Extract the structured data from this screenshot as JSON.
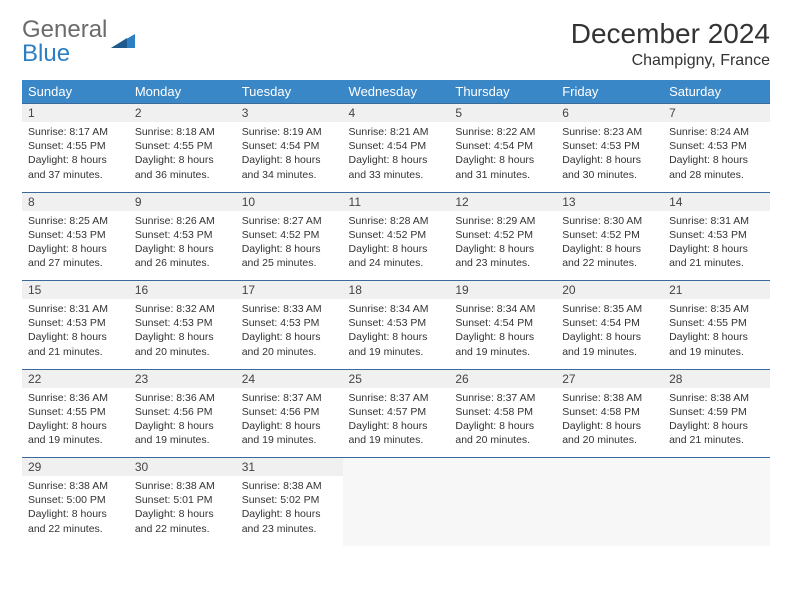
{
  "brand": {
    "general": "General",
    "blue": "Blue"
  },
  "title": "December 2024",
  "location": "Champigny, France",
  "colors": {
    "header_bg": "#3a87c8",
    "header_text": "#ffffff",
    "daynum_bg": "#f0f0f0",
    "border": "#3a6a9a",
    "logo_gray": "#6b6b6b",
    "logo_blue": "#2d7fc1"
  },
  "weekdays": [
    "Sunday",
    "Monday",
    "Tuesday",
    "Wednesday",
    "Thursday",
    "Friday",
    "Saturday"
  ],
  "weeks": [
    [
      {
        "n": "1",
        "sr": "8:17 AM",
        "ss": "4:55 PM",
        "dl": "8 hours and 37 minutes."
      },
      {
        "n": "2",
        "sr": "8:18 AM",
        "ss": "4:55 PM",
        "dl": "8 hours and 36 minutes."
      },
      {
        "n": "3",
        "sr": "8:19 AM",
        "ss": "4:54 PM",
        "dl": "8 hours and 34 minutes."
      },
      {
        "n": "4",
        "sr": "8:21 AM",
        "ss": "4:54 PM",
        "dl": "8 hours and 33 minutes."
      },
      {
        "n": "5",
        "sr": "8:22 AM",
        "ss": "4:54 PM",
        "dl": "8 hours and 31 minutes."
      },
      {
        "n": "6",
        "sr": "8:23 AM",
        "ss": "4:53 PM",
        "dl": "8 hours and 30 minutes."
      },
      {
        "n": "7",
        "sr": "8:24 AM",
        "ss": "4:53 PM",
        "dl": "8 hours and 28 minutes."
      }
    ],
    [
      {
        "n": "8",
        "sr": "8:25 AM",
        "ss": "4:53 PM",
        "dl": "8 hours and 27 minutes."
      },
      {
        "n": "9",
        "sr": "8:26 AM",
        "ss": "4:53 PM",
        "dl": "8 hours and 26 minutes."
      },
      {
        "n": "10",
        "sr": "8:27 AM",
        "ss": "4:52 PM",
        "dl": "8 hours and 25 minutes."
      },
      {
        "n": "11",
        "sr": "8:28 AM",
        "ss": "4:52 PM",
        "dl": "8 hours and 24 minutes."
      },
      {
        "n": "12",
        "sr": "8:29 AM",
        "ss": "4:52 PM",
        "dl": "8 hours and 23 minutes."
      },
      {
        "n": "13",
        "sr": "8:30 AM",
        "ss": "4:52 PM",
        "dl": "8 hours and 22 minutes."
      },
      {
        "n": "14",
        "sr": "8:31 AM",
        "ss": "4:53 PM",
        "dl": "8 hours and 21 minutes."
      }
    ],
    [
      {
        "n": "15",
        "sr": "8:31 AM",
        "ss": "4:53 PM",
        "dl": "8 hours and 21 minutes."
      },
      {
        "n": "16",
        "sr": "8:32 AM",
        "ss": "4:53 PM",
        "dl": "8 hours and 20 minutes."
      },
      {
        "n": "17",
        "sr": "8:33 AM",
        "ss": "4:53 PM",
        "dl": "8 hours and 20 minutes."
      },
      {
        "n": "18",
        "sr": "8:34 AM",
        "ss": "4:53 PM",
        "dl": "8 hours and 19 minutes."
      },
      {
        "n": "19",
        "sr": "8:34 AM",
        "ss": "4:54 PM",
        "dl": "8 hours and 19 minutes."
      },
      {
        "n": "20",
        "sr": "8:35 AM",
        "ss": "4:54 PM",
        "dl": "8 hours and 19 minutes."
      },
      {
        "n": "21",
        "sr": "8:35 AM",
        "ss": "4:55 PM",
        "dl": "8 hours and 19 minutes."
      }
    ],
    [
      {
        "n": "22",
        "sr": "8:36 AM",
        "ss": "4:55 PM",
        "dl": "8 hours and 19 minutes."
      },
      {
        "n": "23",
        "sr": "8:36 AM",
        "ss": "4:56 PM",
        "dl": "8 hours and 19 minutes."
      },
      {
        "n": "24",
        "sr": "8:37 AM",
        "ss": "4:56 PM",
        "dl": "8 hours and 19 minutes."
      },
      {
        "n": "25",
        "sr": "8:37 AM",
        "ss": "4:57 PM",
        "dl": "8 hours and 19 minutes."
      },
      {
        "n": "26",
        "sr": "8:37 AM",
        "ss": "4:58 PM",
        "dl": "8 hours and 20 minutes."
      },
      {
        "n": "27",
        "sr": "8:38 AM",
        "ss": "4:58 PM",
        "dl": "8 hours and 20 minutes."
      },
      {
        "n": "28",
        "sr": "8:38 AM",
        "ss": "4:59 PM",
        "dl": "8 hours and 21 minutes."
      }
    ],
    [
      {
        "n": "29",
        "sr": "8:38 AM",
        "ss": "5:00 PM",
        "dl": "8 hours and 22 minutes."
      },
      {
        "n": "30",
        "sr": "8:38 AM",
        "ss": "5:01 PM",
        "dl": "8 hours and 22 minutes."
      },
      {
        "n": "31",
        "sr": "8:38 AM",
        "ss": "5:02 PM",
        "dl": "8 hours and 23 minutes."
      },
      null,
      null,
      null,
      null
    ]
  ],
  "labels": {
    "sunrise": "Sunrise:",
    "sunset": "Sunset:",
    "daylight": "Daylight:"
  }
}
